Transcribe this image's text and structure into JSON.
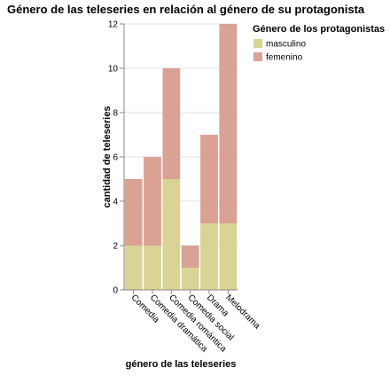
{
  "chart_data": {
    "type": "bar",
    "stacked": true,
    "title": "Género de las teleseries en relación al género de su protagonista",
    "xlabel": "género de las teleseries",
    "ylabel": "cantidad de teleseries",
    "categories": [
      "Comedia",
      "Comedia dramática",
      "Comedia romántica",
      "Comedia social",
      "Drama",
      "Melodrama"
    ],
    "series": [
      {
        "name": "masculino",
        "color": "#d9d496",
        "values": [
          2,
          2,
          5,
          1,
          3,
          3
        ]
      },
      {
        "name": "femenino",
        "color": "#d9a295",
        "values": [
          3,
          4,
          5,
          1,
          4,
          9
        ]
      }
    ],
    "ylim": [
      0,
      12
    ],
    "yticks": [
      0,
      2,
      4,
      6,
      8,
      10,
      12
    ],
    "grid": true,
    "legend": {
      "title": "Género de los protagonistas",
      "position": "top-right"
    }
  }
}
